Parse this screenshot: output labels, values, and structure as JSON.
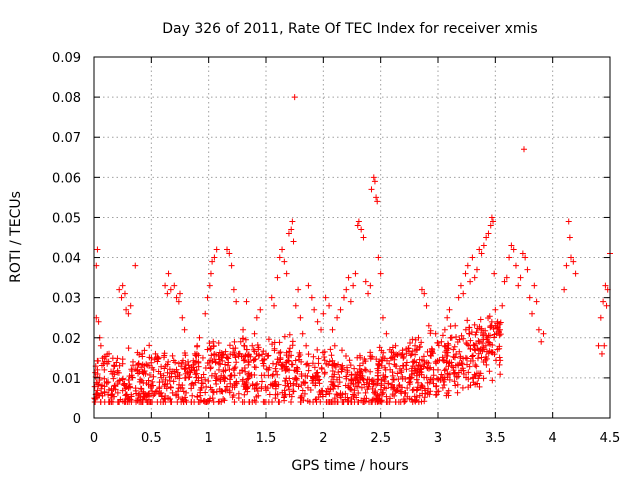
{
  "chart_data": {
    "type": "scatter",
    "title": "Day 326 of 2011, Rate Of TEC Index for receiver xmis",
    "xlabel": "GPS time / hours",
    "ylabel": "ROTI / TECUs",
    "xlim": [
      0,
      4.5
    ],
    "ylim": [
      0,
      0.09
    ],
    "xticks": [
      "0",
      "0.5",
      "1",
      "1.5",
      "2",
      "2.5",
      "3",
      "3.5",
      "4",
      "4.5"
    ],
    "yticks": [
      "0",
      "0.01",
      "0.02",
      "0.03",
      "0.04",
      "0.05",
      "0.06",
      "0.07",
      "0.08",
      "0.09"
    ],
    "grid": true,
    "marker": "+",
    "color": "#ff0000",
    "series": [
      {
        "name": "ROTI",
        "points": [
          [
            0.02,
            0.038
          ],
          [
            0.03,
            0.042
          ],
          [
            0.02,
            0.025
          ],
          [
            0.04,
            0.024
          ],
          [
            0.05,
            0.02
          ],
          [
            0.06,
            0.018
          ],
          [
            0.03,
            0.012
          ],
          [
            0.05,
            0.01
          ],
          [
            0.07,
            0.008
          ],
          [
            0.09,
            0.012
          ],
          [
            0.11,
            0.009
          ],
          [
            0.13,
            0.007
          ],
          [
            0.16,
            0.011
          ],
          [
            0.18,
            0.013
          ],
          [
            0.21,
            0.009
          ],
          [
            0.22,
            0.032
          ],
          [
            0.24,
            0.03
          ],
          [
            0.25,
            0.033
          ],
          [
            0.27,
            0.031
          ],
          [
            0.28,
            0.027
          ],
          [
            0.3,
            0.026
          ],
          [
            0.32,
            0.028
          ],
          [
            0.34,
            0.014
          ],
          [
            0.36,
            0.038
          ],
          [
            0.38,
            0.012
          ],
          [
            0.4,
            0.009
          ],
          [
            0.42,
            0.016
          ],
          [
            0.45,
            0.011
          ],
          [
            0.48,
            0.013
          ],
          [
            0.5,
            0.008
          ],
          [
            0.52,
            0.012
          ],
          [
            0.55,
            0.015
          ],
          [
            0.58,
            0.011
          ],
          [
            0.6,
            0.009
          ],
          [
            0.62,
            0.033
          ],
          [
            0.64,
            0.031
          ],
          [
            0.65,
            0.036
          ],
          [
            0.67,
            0.032
          ],
          [
            0.7,
            0.033
          ],
          [
            0.72,
            0.03
          ],
          [
            0.74,
            0.029
          ],
          [
            0.75,
            0.031
          ],
          [
            0.77,
            0.025
          ],
          [
            0.79,
            0.022
          ],
          [
            0.8,
            0.01
          ],
          [
            0.82,
            0.014
          ],
          [
            0.85,
            0.012
          ],
          [
            0.88,
            0.016
          ],
          [
            0.9,
            0.018
          ],
          [
            0.92,
            0.02
          ],
          [
            0.95,
            0.015
          ],
          [
            0.97,
            0.026
          ],
          [
            0.99,
            0.03
          ],
          [
            1.01,
            0.033
          ],
          [
            1.02,
            0.036
          ],
          [
            1.03,
            0.039
          ],
          [
            1.05,
            0.04
          ],
          [
            1.07,
            0.042
          ],
          [
            1.04,
            0.019
          ],
          [
            1.06,
            0.014
          ],
          [
            1.09,
            0.012
          ],
          [
            1.11,
            0.015
          ],
          [
            1.13,
            0.01
          ],
          [
            1.16,
            0.042
          ],
          [
            1.18,
            0.041
          ],
          [
            1.2,
            0.038
          ],
          [
            1.22,
            0.032
          ],
          [
            1.24,
            0.029
          ],
          [
            1.26,
            0.016
          ],
          [
            1.28,
            0.019
          ],
          [
            1.3,
            0.022
          ],
          [
            1.33,
            0.029
          ],
          [
            1.35,
            0.014
          ],
          [
            1.38,
            0.018
          ],
          [
            1.4,
            0.021
          ],
          [
            1.42,
            0.025
          ],
          [
            1.45,
            0.027
          ],
          [
            1.48,
            0.013
          ],
          [
            1.5,
            0.016
          ],
          [
            1.52,
            0.012
          ],
          [
            1.55,
            0.03
          ],
          [
            1.57,
            0.028
          ],
          [
            1.6,
            0.035
          ],
          [
            1.62,
            0.04
          ],
          [
            1.64,
            0.042
          ],
          [
            1.66,
            0.039
          ],
          [
            1.68,
            0.036
          ],
          [
            1.7,
            0.046
          ],
          [
            1.72,
            0.047
          ],
          [
            1.73,
            0.049
          ],
          [
            1.75,
            0.08
          ],
          [
            1.74,
            0.044
          ],
          [
            1.76,
            0.028
          ],
          [
            1.78,
            0.032
          ],
          [
            1.8,
            0.025
          ],
          [
            1.82,
            0.021
          ],
          [
            1.85,
            0.018
          ],
          [
            1.87,
            0.033
          ],
          [
            1.9,
            0.03
          ],
          [
            1.92,
            0.027
          ],
          [
            1.95,
            0.024
          ],
          [
            1.98,
            0.022
          ],
          [
            2.0,
            0.026
          ],
          [
            2.02,
            0.03
          ],
          [
            2.05,
            0.028
          ],
          [
            2.08,
            0.022
          ],
          [
            2.1,
            0.018
          ],
          [
            2.12,
            0.025
          ],
          [
            2.15,
            0.027
          ],
          [
            2.18,
            0.03
          ],
          [
            2.2,
            0.032
          ],
          [
            2.22,
            0.035
          ],
          [
            2.24,
            0.029
          ],
          [
            2.26,
            0.033
          ],
          [
            2.28,
            0.036
          ],
          [
            2.3,
            0.048
          ],
          [
            2.31,
            0.049
          ],
          [
            2.33,
            0.047
          ],
          [
            2.35,
            0.045
          ],
          [
            2.37,
            0.034
          ],
          [
            2.39,
            0.031
          ],
          [
            2.41,
            0.033
          ],
          [
            2.42,
            0.057
          ],
          [
            2.44,
            0.06
          ],
          [
            2.45,
            0.059
          ],
          [
            2.46,
            0.055
          ],
          [
            2.47,
            0.054
          ],
          [
            2.48,
            0.04
          ],
          [
            2.5,
            0.036
          ],
          [
            2.52,
            0.025
          ],
          [
            2.55,
            0.021
          ],
          [
            2.58,
            0.017
          ],
          [
            2.6,
            0.015
          ],
          [
            2.63,
            0.018
          ],
          [
            2.66,
            0.016
          ],
          [
            2.7,
            0.013
          ],
          [
            2.75,
            0.01
          ],
          [
            2.78,
            0.014
          ],
          [
            2.8,
            0.018
          ],
          [
            2.83,
            0.02
          ],
          [
            2.86,
            0.032
          ],
          [
            2.88,
            0.031
          ],
          [
            2.9,
            0.028
          ],
          [
            2.92,
            0.023
          ],
          [
            2.95,
            0.017
          ],
          [
            2.98,
            0.014
          ],
          [
            3.0,
            0.012
          ],
          [
            3.03,
            0.019
          ],
          [
            3.06,
            0.022
          ],
          [
            3.08,
            0.025
          ],
          [
            3.1,
            0.027
          ],
          [
            3.12,
            0.02
          ],
          [
            3.15,
            0.023
          ],
          [
            3.18,
            0.03
          ],
          [
            3.2,
            0.033
          ],
          [
            3.22,
            0.031
          ],
          [
            3.24,
            0.036
          ],
          [
            3.26,
            0.038
          ],
          [
            3.28,
            0.034
          ],
          [
            3.3,
            0.04
          ],
          [
            3.32,
            0.035
          ],
          [
            3.34,
            0.037
          ],
          [
            3.36,
            0.042
          ],
          [
            3.38,
            0.041
          ],
          [
            3.4,
            0.043
          ],
          [
            3.42,
            0.045
          ],
          [
            3.44,
            0.046
          ],
          [
            3.46,
            0.048
          ],
          [
            3.47,
            0.05
          ],
          [
            3.48,
            0.049
          ],
          [
            3.49,
            0.036
          ],
          [
            3.5,
            0.027
          ],
          [
            3.52,
            0.024
          ],
          [
            3.54,
            0.022
          ],
          [
            3.56,
            0.028
          ],
          [
            3.58,
            0.034
          ],
          [
            3.6,
            0.035
          ],
          [
            3.62,
            0.04
          ],
          [
            3.64,
            0.043
          ],
          [
            3.66,
            0.042
          ],
          [
            3.68,
            0.038
          ],
          [
            3.7,
            0.033
          ],
          [
            3.72,
            0.035
          ],
          [
            3.74,
            0.041
          ],
          [
            3.75,
            0.067
          ],
          [
            3.76,
            0.04
          ],
          [
            3.78,
            0.037
          ],
          [
            3.8,
            0.03
          ],
          [
            3.82,
            0.026
          ],
          [
            3.84,
            0.033
          ],
          [
            3.86,
            0.029
          ],
          [
            3.88,
            0.022
          ],
          [
            3.9,
            0.019
          ],
          [
            3.92,
            0.021
          ],
          [
            4.1,
            0.032
          ],
          [
            4.12,
            0.038
          ],
          [
            4.14,
            0.049
          ],
          [
            4.15,
            0.045
          ],
          [
            4.16,
            0.04
          ],
          [
            4.18,
            0.039
          ],
          [
            4.2,
            0.036
          ],
          [
            4.4,
            0.018
          ],
          [
            4.42,
            0.025
          ],
          [
            4.44,
            0.029
          ],
          [
            4.46,
            0.033
          ],
          [
            4.48,
            0.032
          ],
          [
            4.5,
            0.041
          ],
          [
            4.45,
            0.018
          ],
          [
            4.43,
            0.016
          ],
          [
            4.47,
            0.028
          ]
        ]
      }
    ]
  }
}
